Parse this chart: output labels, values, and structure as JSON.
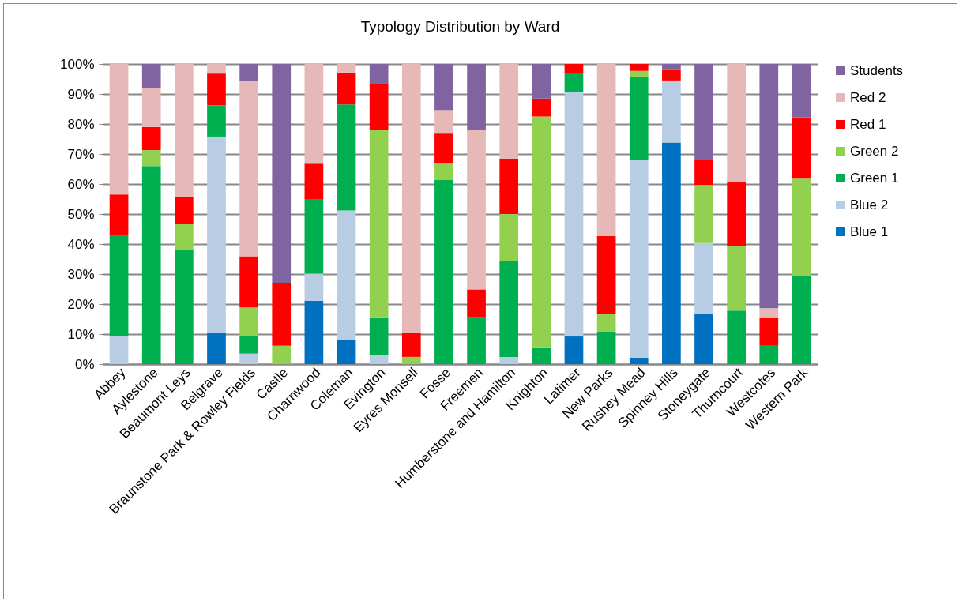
{
  "chart_data": {
    "type": "bar",
    "stacked": true,
    "title": "Typology Distribution by Ward",
    "categories": [
      "Abbey",
      "Aylestone",
      "Beaumont Leys",
      "Belgrave",
      "Braunstone Park & Rowley Fields",
      "Castle",
      "Charnwood",
      "Coleman",
      "Evington",
      "Eyres Monsell",
      "Fosse",
      "Freemen",
      "Humberstone and Hamilton",
      "Knighton",
      "Latimer",
      "New Parks",
      "Rushey Mead",
      "Spinney Hills",
      "Stoneygate",
      "Thurncourt",
      "Westcotes",
      "Western Park"
    ],
    "series": [
      {
        "name": "Blue 1",
        "color": "#0070c0",
        "values": [
          null,
          null,
          null,
          10.3,
          null,
          null,
          21.1,
          7.9,
          null,
          null,
          null,
          null,
          null,
          null,
          9.2,
          null,
          2.1,
          73.8,
          16.9,
          null,
          null,
          null
        ]
      },
      {
        "name": "Blue 2",
        "color": "#b8cce4",
        "values": [
          9.3,
          null,
          null,
          65.5,
          3.5,
          null,
          9,
          43.3,
          2.9,
          null,
          null,
          null,
          2.4,
          null,
          81.4,
          null,
          66,
          20.7,
          23.4,
          null,
          null,
          null
        ]
      },
      {
        "name": "Green 1",
        "color": "#00b050",
        "values": [
          33.7,
          66,
          38,
          10.4,
          5.9,
          null,
          24.7,
          35.3,
          12.7,
          null,
          61.3,
          15.6,
          31.8,
          5.6,
          6.4,
          10.8,
          27.4,
          null,
          null,
          17.8,
          6.1,
          29.5
        ]
      },
      {
        "name": "Green 2",
        "color": "#92d050",
        "values": [
          null,
          5.3,
          8.7,
          null,
          9.5,
          6.1,
          null,
          null,
          62.5,
          2.4,
          5.5,
          null,
          15.8,
          76.9,
          null,
          5.8,
          2.2,
          null,
          19.4,
          21.4,
          null,
          32.3
        ]
      },
      {
        "name": "Red 1",
        "color": "#ff0000",
        "values": [
          13.5,
          7.7,
          9.1,
          10.6,
          17,
          21,
          12,
          10.7,
          15.5,
          8.1,
          10,
          9.3,
          18.4,
          6,
          3,
          26,
          2.3,
          3.7,
          8.4,
          21.5,
          9.4,
          20.4
        ]
      },
      {
        "name": "Red 2",
        "color": "#e6b9b8",
        "values": [
          43.5,
          13,
          44.2,
          3.2,
          58.4,
          null,
          33.2,
          2.8,
          null,
          89.5,
          7.9,
          53.2,
          31.6,
          null,
          null,
          57.4,
          null,
          null,
          null,
          39.3,
          3.1,
          null
        ]
      },
      {
        "name": "Students",
        "color": "#8064a2",
        "values": [
          null,
          8,
          null,
          null,
          5.7,
          72.9,
          null,
          null,
          6.4,
          null,
          15.3,
          21.9,
          null,
          11.5,
          null,
          null,
          null,
          1.8,
          31.9,
          null,
          81.4,
          17.8
        ]
      }
    ],
    "ylim": [
      0,
      100
    ],
    "yticks": [
      {
        "value": 0,
        "label": "0%"
      },
      {
        "value": 10,
        "label": "10%"
      },
      {
        "value": 20,
        "label": "20%"
      },
      {
        "value": 30,
        "label": "30%"
      },
      {
        "value": 40,
        "label": "40%"
      },
      {
        "value": 50,
        "label": "50%"
      },
      {
        "value": 60,
        "label": "60%"
      },
      {
        "value": 70,
        "label": "70%"
      },
      {
        "value": 80,
        "label": "80%"
      },
      {
        "value": 90,
        "label": "90%"
      },
      {
        "value": 100,
        "label": "100%"
      }
    ],
    "grid": "y",
    "legend": "right"
  }
}
